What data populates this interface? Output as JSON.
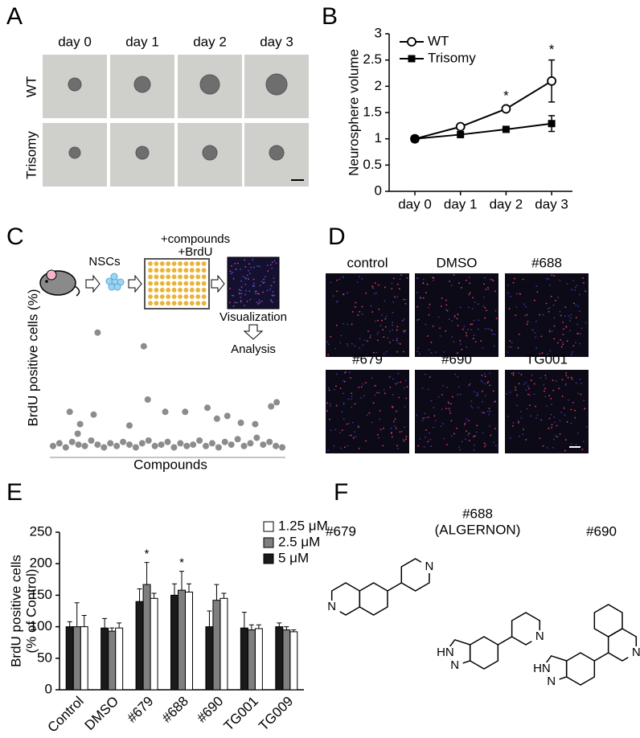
{
  "panel_labels": [
    "A",
    "B",
    "C",
    "D",
    "E",
    "F"
  ],
  "panel_a": {
    "columns": [
      "day 0",
      "day 1",
      "day 2",
      "day 3"
    ],
    "rows": [
      "WT",
      "Trisomy"
    ]
  },
  "panel_c": {
    "steps": [
      "NSCs",
      "+compounds",
      "+BrdU",
      "Visualization",
      "Analysis"
    ]
  },
  "panel_d": {
    "images": [
      "control",
      "DMSO",
      "#688",
      "#679",
      "#690",
      "TG001"
    ]
  },
  "panel_f": {
    "compounds": [
      {
        "name": "#679",
        "atoms": [
          "N",
          "N"
        ]
      },
      {
        "name": "#688",
        "alias": "(ALGERNON)",
        "atoms": [
          "HN",
          "N",
          "N"
        ]
      },
      {
        "name": "#690",
        "atoms": [
          "HN",
          "N",
          "N"
        ]
      }
    ]
  },
  "chart_data": [
    {
      "type": "line",
      "y_label": "Neurosphere volume",
      "categories": [
        "day 0",
        "day 1",
        "day 2",
        "day 3"
      ],
      "series": [
        {
          "name": "WT",
          "color": "#000000",
          "marker": "open-circle",
          "values": [
            1.0,
            1.23,
            1.57,
            2.1
          ],
          "errors": [
            0.02,
            0.05,
            0.05,
            0.4
          ]
        },
        {
          "name": "Trisomy",
          "color": "#000000",
          "marker": "filled-square",
          "values": [
            1.0,
            1.08,
            1.18,
            1.29
          ],
          "errors": [
            0.02,
            0.05,
            0.05,
            0.15
          ]
        }
      ],
      "significance": [
        null,
        null,
        "*",
        "*"
      ],
      "ylim": [
        0,
        3
      ],
      "yticks": [
        0,
        0.5,
        1,
        1.5,
        2,
        2.5,
        3
      ],
      "legend": "upper left"
    },
    {
      "type": "scatter",
      "y_label": "BrdU positive cells (%)",
      "x_label": "Compounds",
      "color": "#8c8c8c",
      "x": [
        64,
        72,
        80,
        88,
        96,
        104,
        112,
        120,
        128,
        136,
        144,
        152,
        160,
        168,
        176,
        184,
        192,
        200,
        208,
        216,
        224,
        232,
        240,
        248,
        256,
        264,
        272,
        280,
        288,
        296,
        304,
        312,
        320,
        328,
        336,
        344,
        352,
        85,
        95,
        98,
        115,
        120,
        160,
        178,
        183,
        205,
        230,
        258,
        270,
        283,
        300,
        318,
        338,
        345
      ],
      "values": [
        6,
        8,
        5,
        9,
        7,
        6,
        10,
        7,
        5,
        8,
        6,
        9,
        7,
        5,
        8,
        10,
        6,
        7,
        9,
        5,
        8,
        6,
        7,
        10,
        6,
        8,
        5,
        9,
        7,
        11,
        6,
        8,
        12,
        7,
        9,
        6,
        5,
        31,
        15,
        22,
        29,
        89,
        21,
        79,
        40,
        31,
        31,
        34,
        26,
        28,
        23,
        22,
        35,
        38
      ],
      "xlim": [
        60,
        356
      ],
      "ylim": [
        0,
        100
      ]
    },
    {
      "type": "bar",
      "y_label": [
        "BrdU positive cells",
        "(% of Control)"
      ],
      "categories": [
        "Control",
        "DMSO",
        "#679",
        "#688",
        "#690",
        "TG001",
        "TG009"
      ],
      "series": [
        {
          "name": "1.25 μM",
          "color": "#ffffff",
          "values": [
            100,
            98,
            145,
            155,
            145,
            97,
            92
          ],
          "errors": [
            18,
            8,
            8,
            13,
            8,
            6,
            3
          ]
        },
        {
          "name": "2.5 μM",
          "color": "#7f7f7f",
          "values": [
            100,
            93,
            167,
            158,
            142,
            95,
            95
          ],
          "errors": [
            38,
            5,
            35,
            30,
            25,
            8,
            5
          ]
        },
        {
          "name": "5 μM",
          "color": "#1a1a1a",
          "values": [
            100,
            98,
            140,
            150,
            100,
            98,
            100
          ],
          "errors": [
            8,
            15,
            20,
            18,
            25,
            25,
            6
          ]
        }
      ],
      "significance": [
        null,
        null,
        "*",
        "*",
        null,
        null,
        null
      ],
      "ylim": [
        0,
        250
      ],
      "yticks": [
        0,
        50,
        100,
        150,
        200,
        250
      ],
      "legend": "upper right"
    }
  ]
}
